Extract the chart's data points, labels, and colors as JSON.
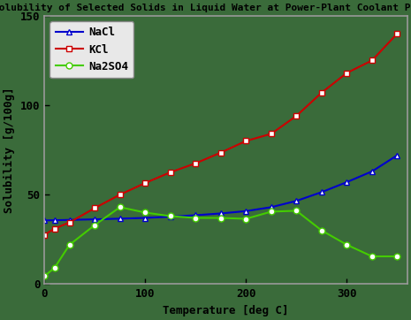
{
  "title": "Solubility of Selected Solids in Liquid Water at Power-Plant Coolant Pressures",
  "xlabel": "Temperature [deg C]",
  "ylabel": "Solubility [g/100g]",
  "plot_bg_color": "#3a6b3a",
  "figure_bg_color": "#3a6b3a",
  "border_color": "#999999",
  "xlim": [
    0,
    360
  ],
  "ylim": [
    0,
    150
  ],
  "xticks": [
    0,
    100,
    200,
    300
  ],
  "yticks": [
    0,
    50,
    100,
    150
  ],
  "NaCl": {
    "x": [
      0,
      10,
      25,
      50,
      75,
      100,
      125,
      150,
      175,
      200,
      225,
      250,
      275,
      300,
      325,
      350
    ],
    "y": [
      35.6,
      35.7,
      35.9,
      36.2,
      36.6,
      37.0,
      37.7,
      38.5,
      39.5,
      40.8,
      43.0,
      46.5,
      51.4,
      57.0,
      63.0,
      72.0
    ],
    "color": "#0000cc",
    "marker": "^",
    "marker_facecolor": "white",
    "marker_edgecolor": "#0000cc",
    "linestyle": "-",
    "linewidth": 1.5,
    "markersize": 5,
    "label": "NaCl"
  },
  "KCl": {
    "x": [
      0,
      10,
      25,
      50,
      75,
      100,
      125,
      150,
      175,
      200,
      225,
      250,
      275,
      300,
      325,
      350
    ],
    "y": [
      27.5,
      31.0,
      34.5,
      42.5,
      50.0,
      56.5,
      62.5,
      67.5,
      73.5,
      80.0,
      84.0,
      94.0,
      107.0,
      118.0,
      125.0,
      140.0
    ],
    "color": "#cc0000",
    "marker": "s",
    "marker_facecolor": "white",
    "marker_edgecolor": "#cc0000",
    "linestyle": "-",
    "linewidth": 1.5,
    "markersize": 5,
    "label": "KCl"
  },
  "Na2SO4": {
    "x": [
      0,
      10,
      25,
      50,
      75,
      100,
      125,
      150,
      175,
      200,
      225,
      250,
      275,
      300,
      325,
      350
    ],
    "y": [
      4.5,
      9.0,
      22.0,
      33.0,
      43.0,
      40.0,
      38.0,
      37.0,
      37.0,
      36.5,
      40.5,
      41.0,
      30.0,
      22.0,
      15.5,
      15.5
    ],
    "color": "#44cc00",
    "marker": "o",
    "marker_facecolor": "white",
    "marker_edgecolor": "#44cc00",
    "linestyle": "-",
    "linewidth": 1.5,
    "markersize": 5,
    "label": "Na2SO4"
  },
  "title_fontsize": 8,
  "axis_label_fontsize": 9,
  "tick_fontsize": 9,
  "legend_fontsize": 9,
  "tick_color": "#000000",
  "label_color": "#000000",
  "title_color": "#000000"
}
